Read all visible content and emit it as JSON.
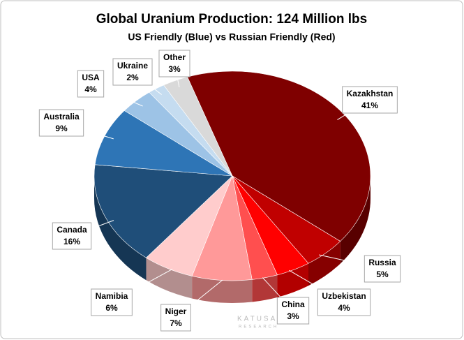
{
  "chart_data": {
    "type": "pie",
    "title": "Global Uranium Production: 124 Million lbs",
    "subtitle": "US Friendly (Blue) vs Russian Friendly (Red)",
    "categories": [
      "Kazakhstan",
      "Russia",
      "Uzbekistan",
      "China",
      "Niger",
      "Namibia",
      "Canada",
      "Australia",
      "USA",
      "Ukraine",
      "Other"
    ],
    "values": [
      41,
      5,
      4,
      3,
      7,
      6,
      16,
      9,
      4,
      2,
      3
    ],
    "value_labels": [
      "41%",
      "5%",
      "4%",
      "3%",
      "7%",
      "6%",
      "16%",
      "9%",
      "4%",
      "2%",
      "3%"
    ],
    "colors": [
      "#7f0000",
      "#c00000",
      "#ff0000",
      "#ff4f4f",
      "#ff9999",
      "#ffcccc",
      "#1f4e79",
      "#2e75b6",
      "#9dc3e6",
      "#c5dcf0",
      "#d9d9d9"
    ],
    "watermark": [
      "KATUSA",
      "RESEARCH"
    ]
  }
}
